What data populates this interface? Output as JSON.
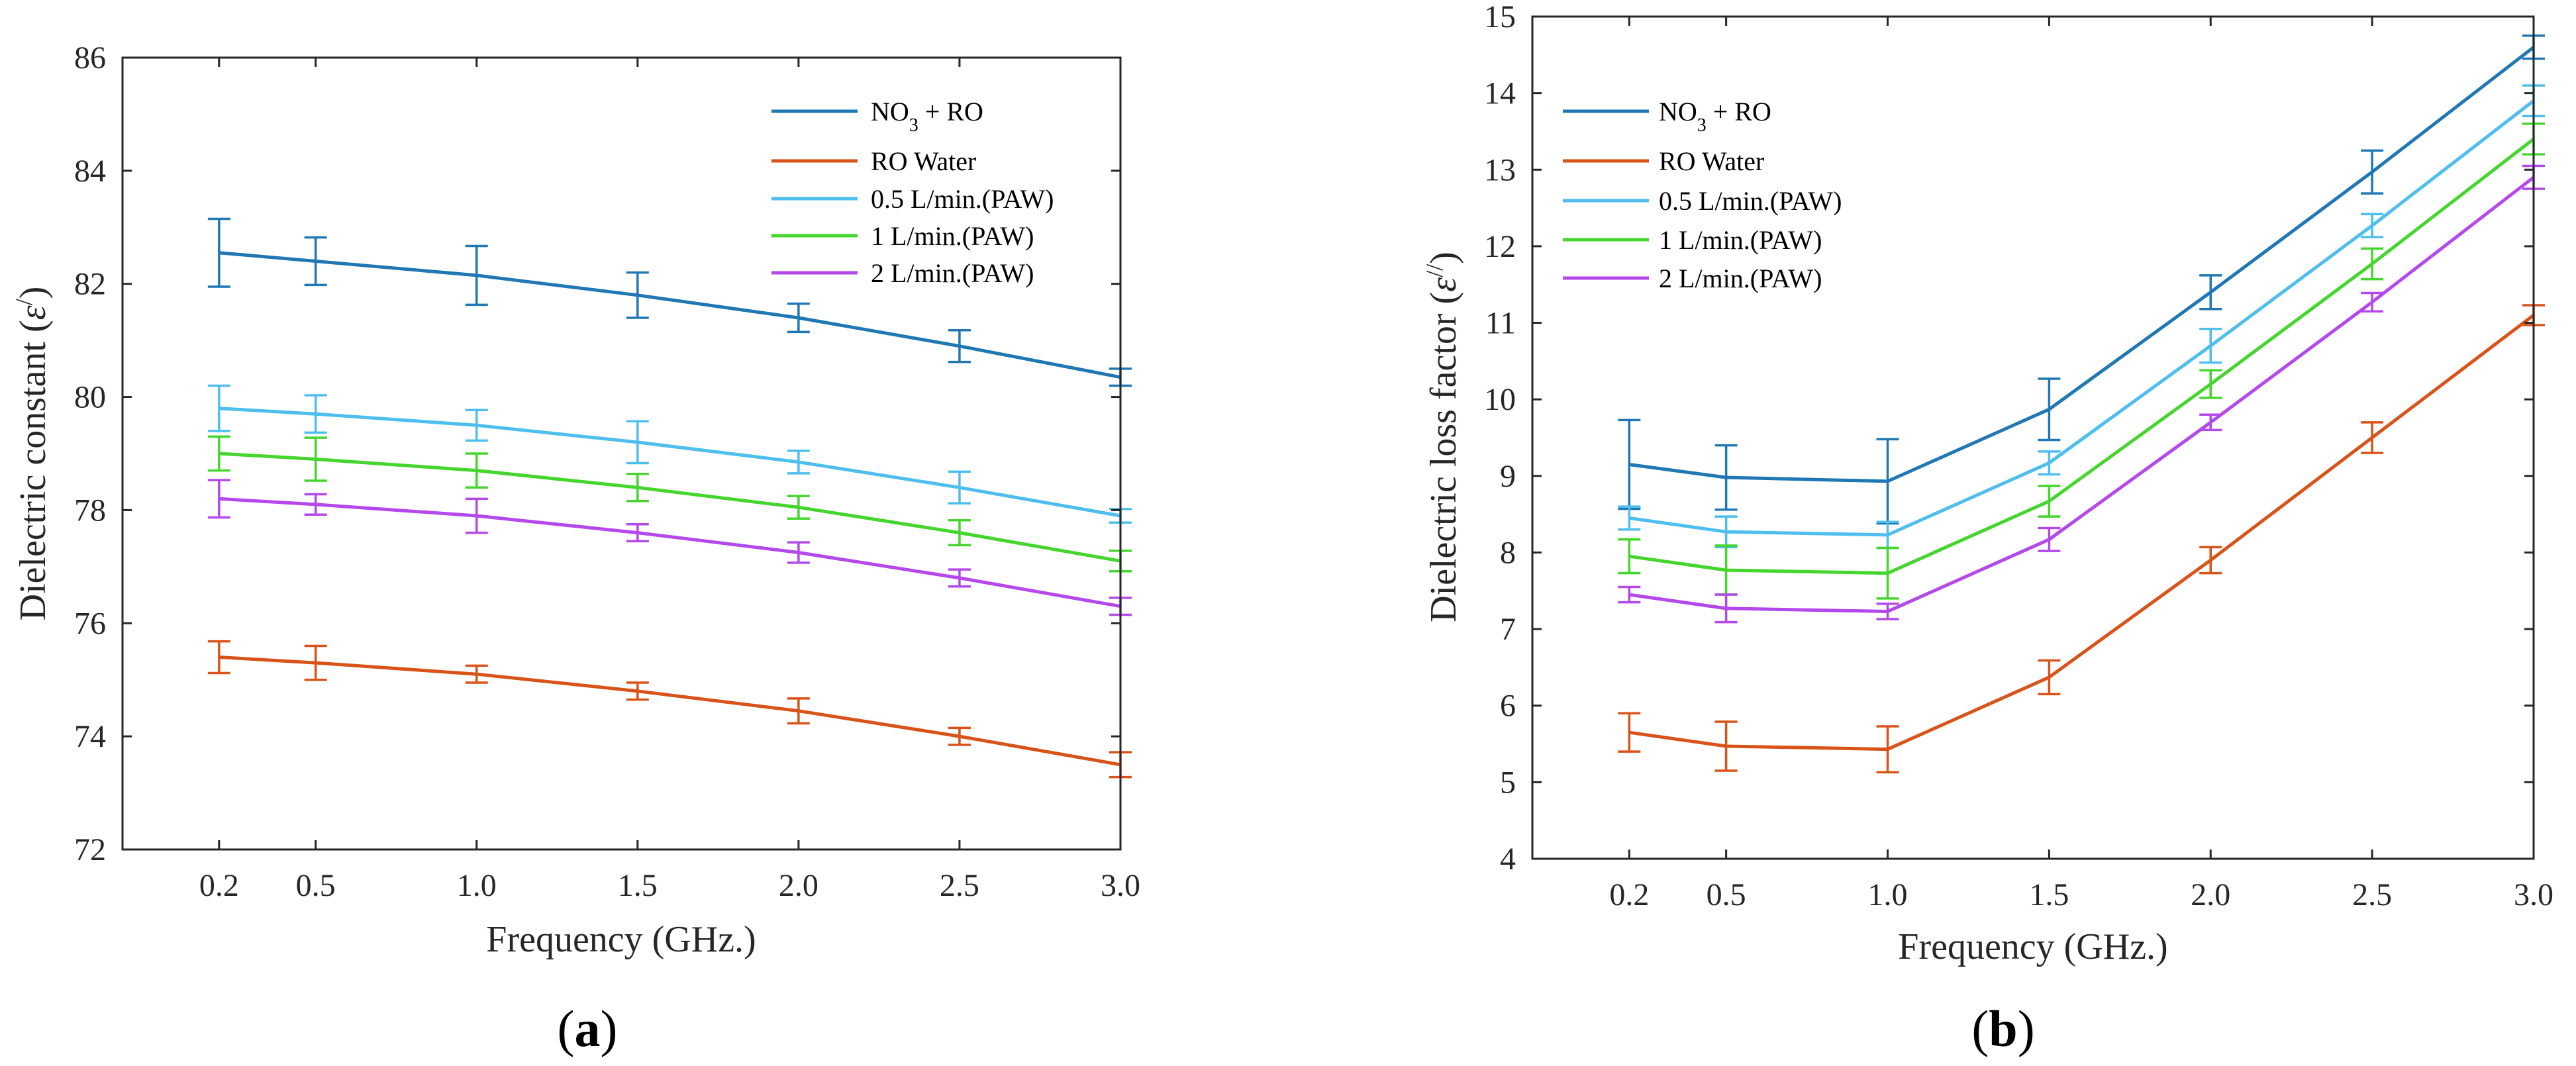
{
  "chart_data": [
    {
      "type": "line",
      "panel": "a",
      "caption": {
        "open": "(",
        "letter": "a",
        "close": ")"
      },
      "xlabel": "Frequency (GHz.)",
      "ylabel": {
        "prefix": "Dielectric constant (",
        "symbol": "ε",
        "prime": "/",
        "suffix": ")"
      },
      "x": [
        0.2,
        0.5,
        1.0,
        1.5,
        2.0,
        2.5,
        3.0
      ],
      "xticks": [
        "0.2",
        "0.5",
        "1.0",
        "1.5",
        "2.0",
        "2.5",
        "3.0"
      ],
      "xlim": [
        -0.1,
        3.0
      ],
      "ylim": [
        72,
        86
      ],
      "yticks": [
        "72",
        "74",
        "76",
        "78",
        "80",
        "82",
        "84",
        "86"
      ],
      "grid": false,
      "legend_position": "top-right",
      "series": [
        {
          "name": "NO3 + RO",
          "label_main": "NO",
          "label_sub": "3",
          "label_rest": " + RO",
          "color": "#1f77b4",
          "values": [
            82.55,
            82.4,
            82.15,
            81.8,
            81.4,
            80.9,
            80.35
          ],
          "errors": [
            0.6,
            0.42,
            0.52,
            0.4,
            0.25,
            0.28,
            0.15
          ]
        },
        {
          "name": "RO Water",
          "label_main": "RO Water",
          "color": "#d95319",
          "values": [
            75.4,
            75.3,
            75.1,
            74.8,
            74.45,
            74.0,
            73.5
          ],
          "errors": [
            0.28,
            0.3,
            0.15,
            0.15,
            0.22,
            0.15,
            0.22
          ]
        },
        {
          "name": "0.5 L/min.(PAW)",
          "label_main": "0.5 L/min.(PAW)",
          "color": "#4dbeee",
          "values": [
            79.8,
            79.7,
            79.5,
            79.2,
            78.85,
            78.4,
            77.9
          ],
          "errors": [
            0.4,
            0.33,
            0.27,
            0.37,
            0.2,
            0.28,
            0.12
          ]
        },
        {
          "name": "1 L/min.(PAW)",
          "label_main": "1 L/min.(PAW)",
          "color": "#44d62c",
          "values": [
            79.0,
            78.9,
            78.7,
            78.4,
            78.05,
            77.6,
            77.1
          ],
          "errors": [
            0.3,
            0.38,
            0.3,
            0.24,
            0.2,
            0.22,
            0.18
          ]
        },
        {
          "name": "2 L/min.(PAW)",
          "label_main": "2 L/min.(PAW)",
          "color": "#b448ea",
          "values": [
            78.2,
            78.1,
            77.9,
            77.6,
            77.25,
            76.8,
            76.3
          ],
          "errors": [
            0.33,
            0.18,
            0.3,
            0.15,
            0.18,
            0.15,
            0.15
          ]
        }
      ]
    },
    {
      "type": "line",
      "panel": "b",
      "caption": {
        "open": "(",
        "letter": "b",
        "close": ")"
      },
      "xlabel": "Frequency (GHz.)",
      "ylabel": {
        "prefix": "Dielectric loss factor (",
        "symbol": "ε",
        "prime": "//",
        "suffix": ")"
      },
      "x": [
        0.2,
        0.5,
        1.0,
        1.5,
        2.0,
        2.5,
        3.0
      ],
      "xticks": [
        "0.2",
        "0.5",
        "1.0",
        "1.5",
        "2.0",
        "2.5",
        "3.0"
      ],
      "xlim": [
        -0.1,
        3.0
      ],
      "ylim": [
        4,
        15
      ],
      "yticks": [
        "4",
        "5",
        "6",
        "7",
        "8",
        "9",
        "10",
        "11",
        "12",
        "13",
        "14",
        "15"
      ],
      "grid": false,
      "legend_position": "top-left",
      "series": [
        {
          "name": "NO3 + RO",
          "label_main": "NO",
          "label_sub": "3",
          "label_rest": " + RO",
          "color": "#1f77b4",
          "values": [
            9.15,
            8.98,
            8.93,
            9.87,
            11.4,
            12.97,
            14.6
          ],
          "errors": [
            0.58,
            0.42,
            0.55,
            0.4,
            0.22,
            0.28,
            0.15
          ]
        },
        {
          "name": "RO Water",
          "label_main": "RO Water",
          "color": "#d95319",
          "values": [
            5.65,
            5.47,
            5.43,
            6.37,
            7.9,
            9.5,
            11.1
          ],
          "errors": [
            0.25,
            0.32,
            0.3,
            0.22,
            0.17,
            0.2,
            0.13
          ]
        },
        {
          "name": "0.5 L/min.(PAW)",
          "label_main": "0.5 L/min.(PAW)",
          "color": "#4dbeee",
          "values": [
            8.45,
            8.27,
            8.23,
            9.17,
            10.7,
            12.27,
            13.9
          ],
          "errors": [
            0.15,
            0.2,
            0.17,
            0.15,
            0.22,
            0.15,
            0.2
          ]
        },
        {
          "name": "1 L/min.(PAW)",
          "label_main": "1 L/min.(PAW)",
          "color": "#44d62c",
          "values": [
            7.95,
            7.77,
            7.73,
            8.67,
            10.2,
            11.77,
            13.4
          ],
          "errors": [
            0.22,
            0.32,
            0.33,
            0.2,
            0.18,
            0.2,
            0.2
          ]
        },
        {
          "name": "2 L/min.(PAW)",
          "label_main": "2 L/min.(PAW)",
          "color": "#b448ea",
          "values": [
            7.45,
            7.27,
            7.23,
            8.17,
            9.7,
            11.27,
            12.9
          ],
          "errors": [
            0.1,
            0.18,
            0.1,
            0.15,
            0.1,
            0.12,
            0.15
          ]
        }
      ]
    }
  ]
}
